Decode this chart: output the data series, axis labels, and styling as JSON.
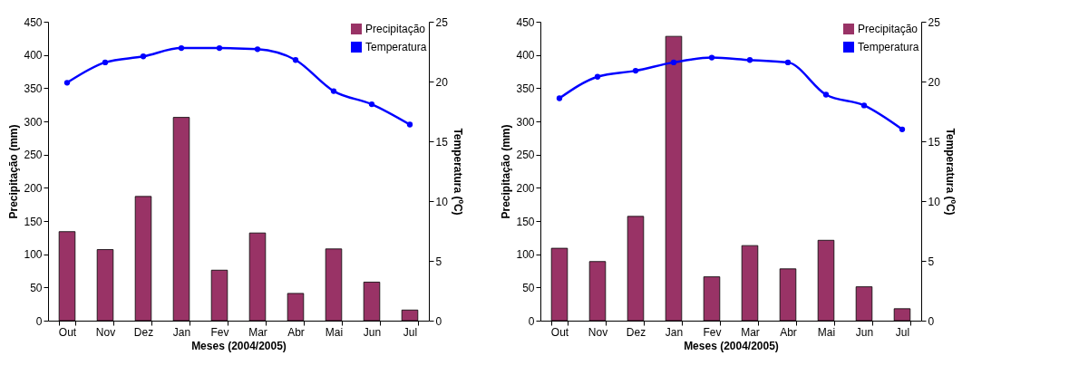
{
  "chart_data": [
    {
      "type": "bar",
      "xlabel": "Meses (2004/2005)",
      "ylabel": "Precipitação (mm)",
      "y2label": "Temperatura (ºC)",
      "categories": [
        "Out",
        "Nov",
        "Dez",
        "Jan",
        "Fev",
        "Mar",
        "Abr",
        "Mai",
        "Jun",
        "Jul"
      ],
      "series": [
        {
          "name": "Precipitação",
          "color": "#993366",
          "values": [
            134,
            107,
            187,
            306,
            76,
            132,
            41,
            108,
            58,
            16
          ]
        },
        {
          "name": "Temperatura",
          "type": "line",
          "axis": "y2",
          "color": "#0000ff",
          "values": [
            19.9,
            21.6,
            22.1,
            22.8,
            22.8,
            22.7,
            21.8,
            19.2,
            18.1,
            16.4
          ]
        }
      ],
      "ylim": [
        0,
        450
      ],
      "yticks": [
        0,
        50,
        100,
        150,
        200,
        250,
        300,
        350,
        400,
        450
      ],
      "y2lim": [
        0,
        25
      ],
      "y2ticks": [
        0,
        5,
        10,
        15,
        20,
        25
      ],
      "grid": false,
      "legend": "top right",
      "marker": "circle",
      "line_style": "solid"
    },
    {
      "type": "bar",
      "xlabel": "Meses (2004/2005)",
      "ylabel": "Precipitação (mm)",
      "y2label": "Temperatura (ºC)",
      "categories": [
        "Out",
        "Nov",
        "Dez",
        "Jan",
        "Fev",
        "Mar",
        "Abr",
        "Mai",
        "Jun",
        "Jul"
      ],
      "series": [
        {
          "name": "Precipitação",
          "color": "#993366",
          "values": [
            109,
            89,
            157,
            428,
            66,
            113,
            78,
            121,
            51,
            18
          ]
        },
        {
          "name": "Temperatura",
          "type": "line",
          "axis": "y2",
          "color": "#0000ff",
          "values": [
            18.6,
            20.4,
            20.9,
            21.6,
            22.0,
            21.8,
            21.6,
            18.9,
            18.0,
            16.0
          ]
        }
      ],
      "ylim": [
        0,
        450
      ],
      "yticks": [
        0,
        50,
        100,
        150,
        200,
        250,
        300,
        350,
        400,
        450
      ],
      "y2lim": [
        0,
        25
      ],
      "y2ticks": [
        0,
        5,
        10,
        15,
        20,
        25
      ],
      "grid": false,
      "legend": "top right",
      "marker": "circle",
      "line_style": "solid"
    }
  ]
}
